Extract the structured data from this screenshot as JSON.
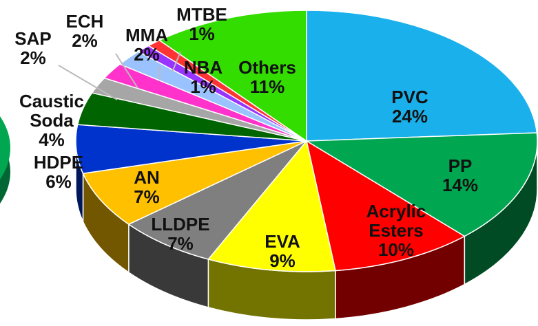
{
  "chart_data": {
    "type": "pie3d",
    "categories": [
      "PVC",
      "PP",
      "Acrylic Esters",
      "EVA",
      "LLDPE",
      "AN",
      "HDPE",
      "Caustic Soda",
      "SAP",
      "ECH",
      "MMA",
      "MTBE",
      "NBA",
      "Others"
    ],
    "values": [
      24,
      14,
      10,
      9,
      7,
      7,
      6,
      4,
      2,
      2,
      2,
      1,
      1,
      11
    ],
    "value_labels": [
      "24%",
      "14%",
      "10%",
      "9%",
      "7%",
      "7%",
      "6%",
      "4%",
      "2%",
      "2%",
      "2%",
      "1%",
      "1%",
      "11%"
    ],
    "colors": [
      "#1ab0ec",
      "#00a650",
      "#ff0000",
      "#ffff00",
      "#7f7f7f",
      "#ffc000",
      "#0033cc",
      "#006400",
      "#a6a6a6",
      "#ff33cc",
      "#99c2ff",
      "#9933ff",
      "#ff3333",
      "#33dd00"
    ]
  }
}
